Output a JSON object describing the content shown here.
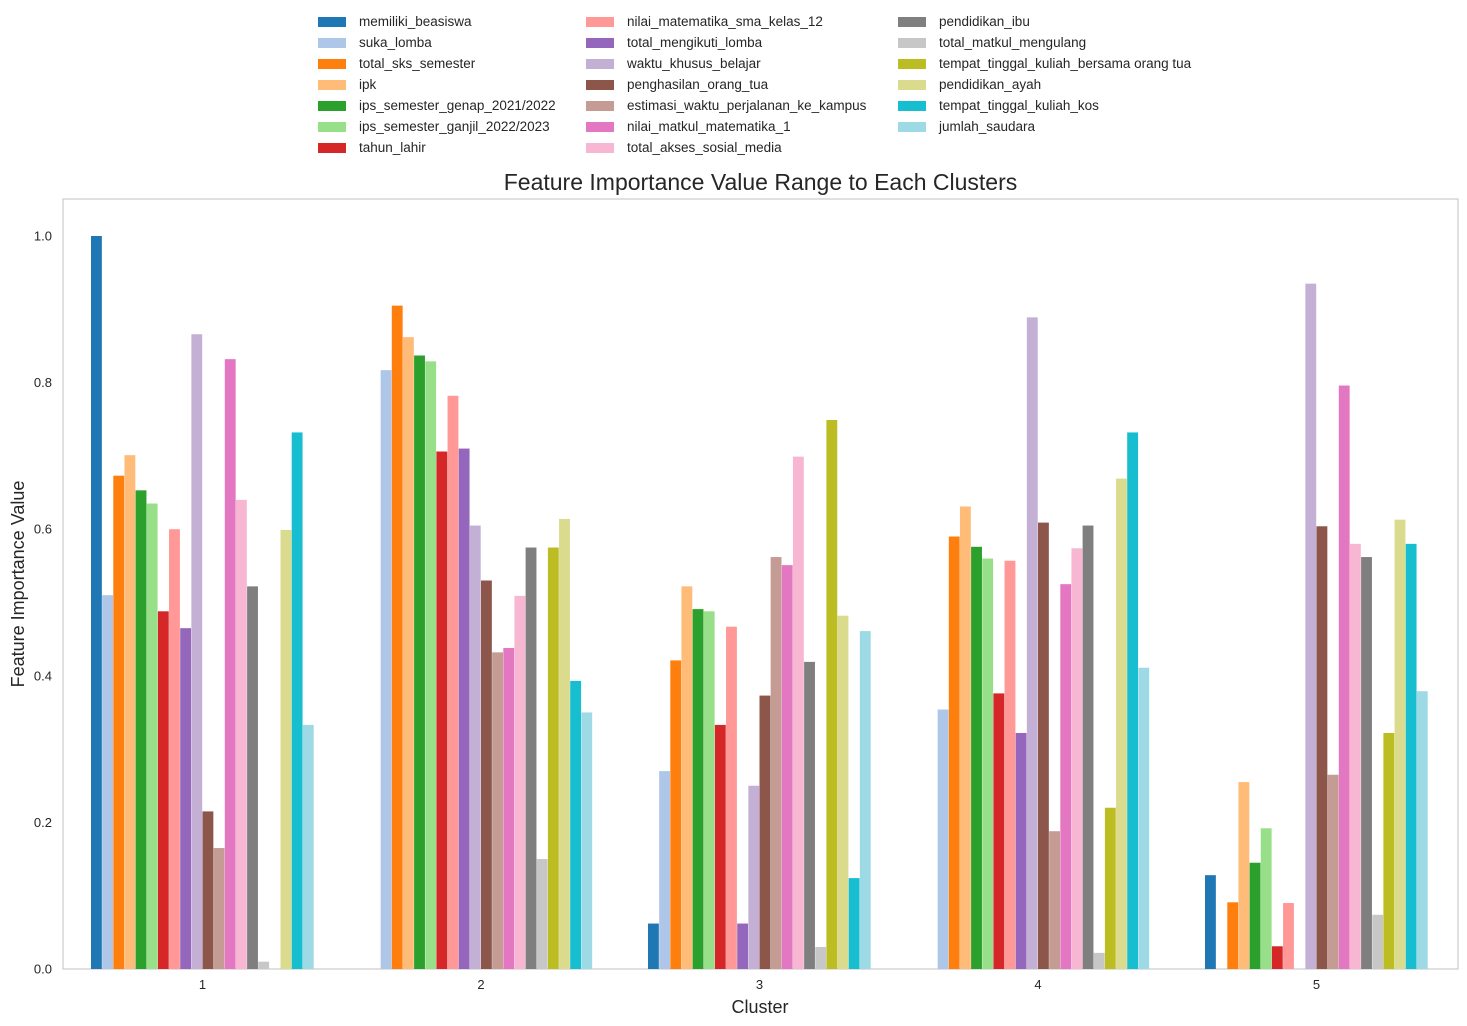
{
  "chart_data": {
    "type": "bar",
    "title": "Feature Importance Value Range to Each Clusters",
    "xlabel": "Cluster",
    "ylabel": "Feature Importance Value",
    "categories": [
      "1",
      "2",
      "3",
      "4",
      "5"
    ],
    "ylim": [
      0,
      1.05
    ],
    "yticks": [
      "0.0",
      "0.2",
      "0.4",
      "0.6",
      "0.8",
      "1.0"
    ],
    "grid": false,
    "legend_position": "top-center",
    "series": [
      {
        "name": "memiliki_beasiswa",
        "color": "#1f77b4",
        "values": [
          1.0,
          0.0,
          0.062,
          0.0,
          0.128
        ]
      },
      {
        "name": "suka_lomba",
        "color": "#aec7e8",
        "values": [
          0.51,
          0.817,
          0.27,
          0.354,
          0.0
        ]
      },
      {
        "name": "total_sks_semester",
        "color": "#ff7f0e",
        "values": [
          0.673,
          0.905,
          0.421,
          0.59,
          0.091
        ]
      },
      {
        "name": "ipk",
        "color": "#ffbb78",
        "values": [
          0.701,
          0.862,
          0.522,
          0.631,
          0.255
        ]
      },
      {
        "name": "ips_semester_genap_2021/2022",
        "color": "#2ca02c",
        "values": [
          0.653,
          0.837,
          0.491,
          0.576,
          0.145
        ]
      },
      {
        "name": "ips_semester_ganjil_2022/2023",
        "color": "#98df8a",
        "values": [
          0.635,
          0.829,
          0.488,
          0.56,
          0.192
        ]
      },
      {
        "name": "tahun_lahir",
        "color": "#d62728",
        "values": [
          0.488,
          0.706,
          0.333,
          0.376,
          0.031
        ]
      },
      {
        "name": "nilai_matematika_sma_kelas_12",
        "color": "#ff9896",
        "values": [
          0.6,
          0.782,
          0.467,
          0.557,
          0.09
        ]
      },
      {
        "name": "total_mengikuti_lomba",
        "color": "#9467bd",
        "values": [
          0.465,
          0.71,
          0.062,
          0.322,
          0.0
        ]
      },
      {
        "name": "waktu_khusus_belajar",
        "color": "#c5b0d5",
        "values": [
          0.866,
          0.605,
          0.25,
          0.889,
          0.935
        ]
      },
      {
        "name": "penghasilan_orang_tua",
        "color": "#8c564b",
        "values": [
          0.215,
          0.53,
          0.373,
          0.609,
          0.604
        ]
      },
      {
        "name": "estimasi_waktu_perjalanan_ke_kampus",
        "color": "#c49c94",
        "values": [
          0.165,
          0.432,
          0.562,
          0.188,
          0.265
        ]
      },
      {
        "name": "nilai_matkul_matematika_1",
        "color": "#e377c2",
        "values": [
          0.832,
          0.438,
          0.551,
          0.525,
          0.796
        ]
      },
      {
        "name": "total_akses_sosial_media",
        "color": "#f7b6d2",
        "values": [
          0.64,
          0.509,
          0.699,
          0.574,
          0.58
        ]
      },
      {
        "name": "pendidikan_ibu",
        "color": "#7f7f7f",
        "values": [
          0.522,
          0.575,
          0.419,
          0.605,
          0.562
        ]
      },
      {
        "name": "total_matkul_mengulang",
        "color": "#c7c7c7",
        "values": [
          0.01,
          0.15,
          0.03,
          0.022,
          0.074
        ]
      },
      {
        "name": "tempat_tinggal_kuliah_bersama orang tua",
        "color": "#bcbd22",
        "values": [
          0.0,
          0.575,
          0.749,
          0.22,
          0.322
        ]
      },
      {
        "name": "pendidikan_ayah",
        "color": "#dbdb8d",
        "values": [
          0.599,
          0.614,
          0.482,
          0.669,
          0.613
        ]
      },
      {
        "name": "tempat_tinggal_kuliah_kos",
        "color": "#17becf",
        "values": [
          0.732,
          0.393,
          0.124,
          0.732,
          0.58
        ]
      },
      {
        "name": "jumlah_saudara",
        "color": "#9edae5",
        "values": [
          0.333,
          0.35,
          0.461,
          0.411,
          0.379
        ]
      }
    ]
  }
}
